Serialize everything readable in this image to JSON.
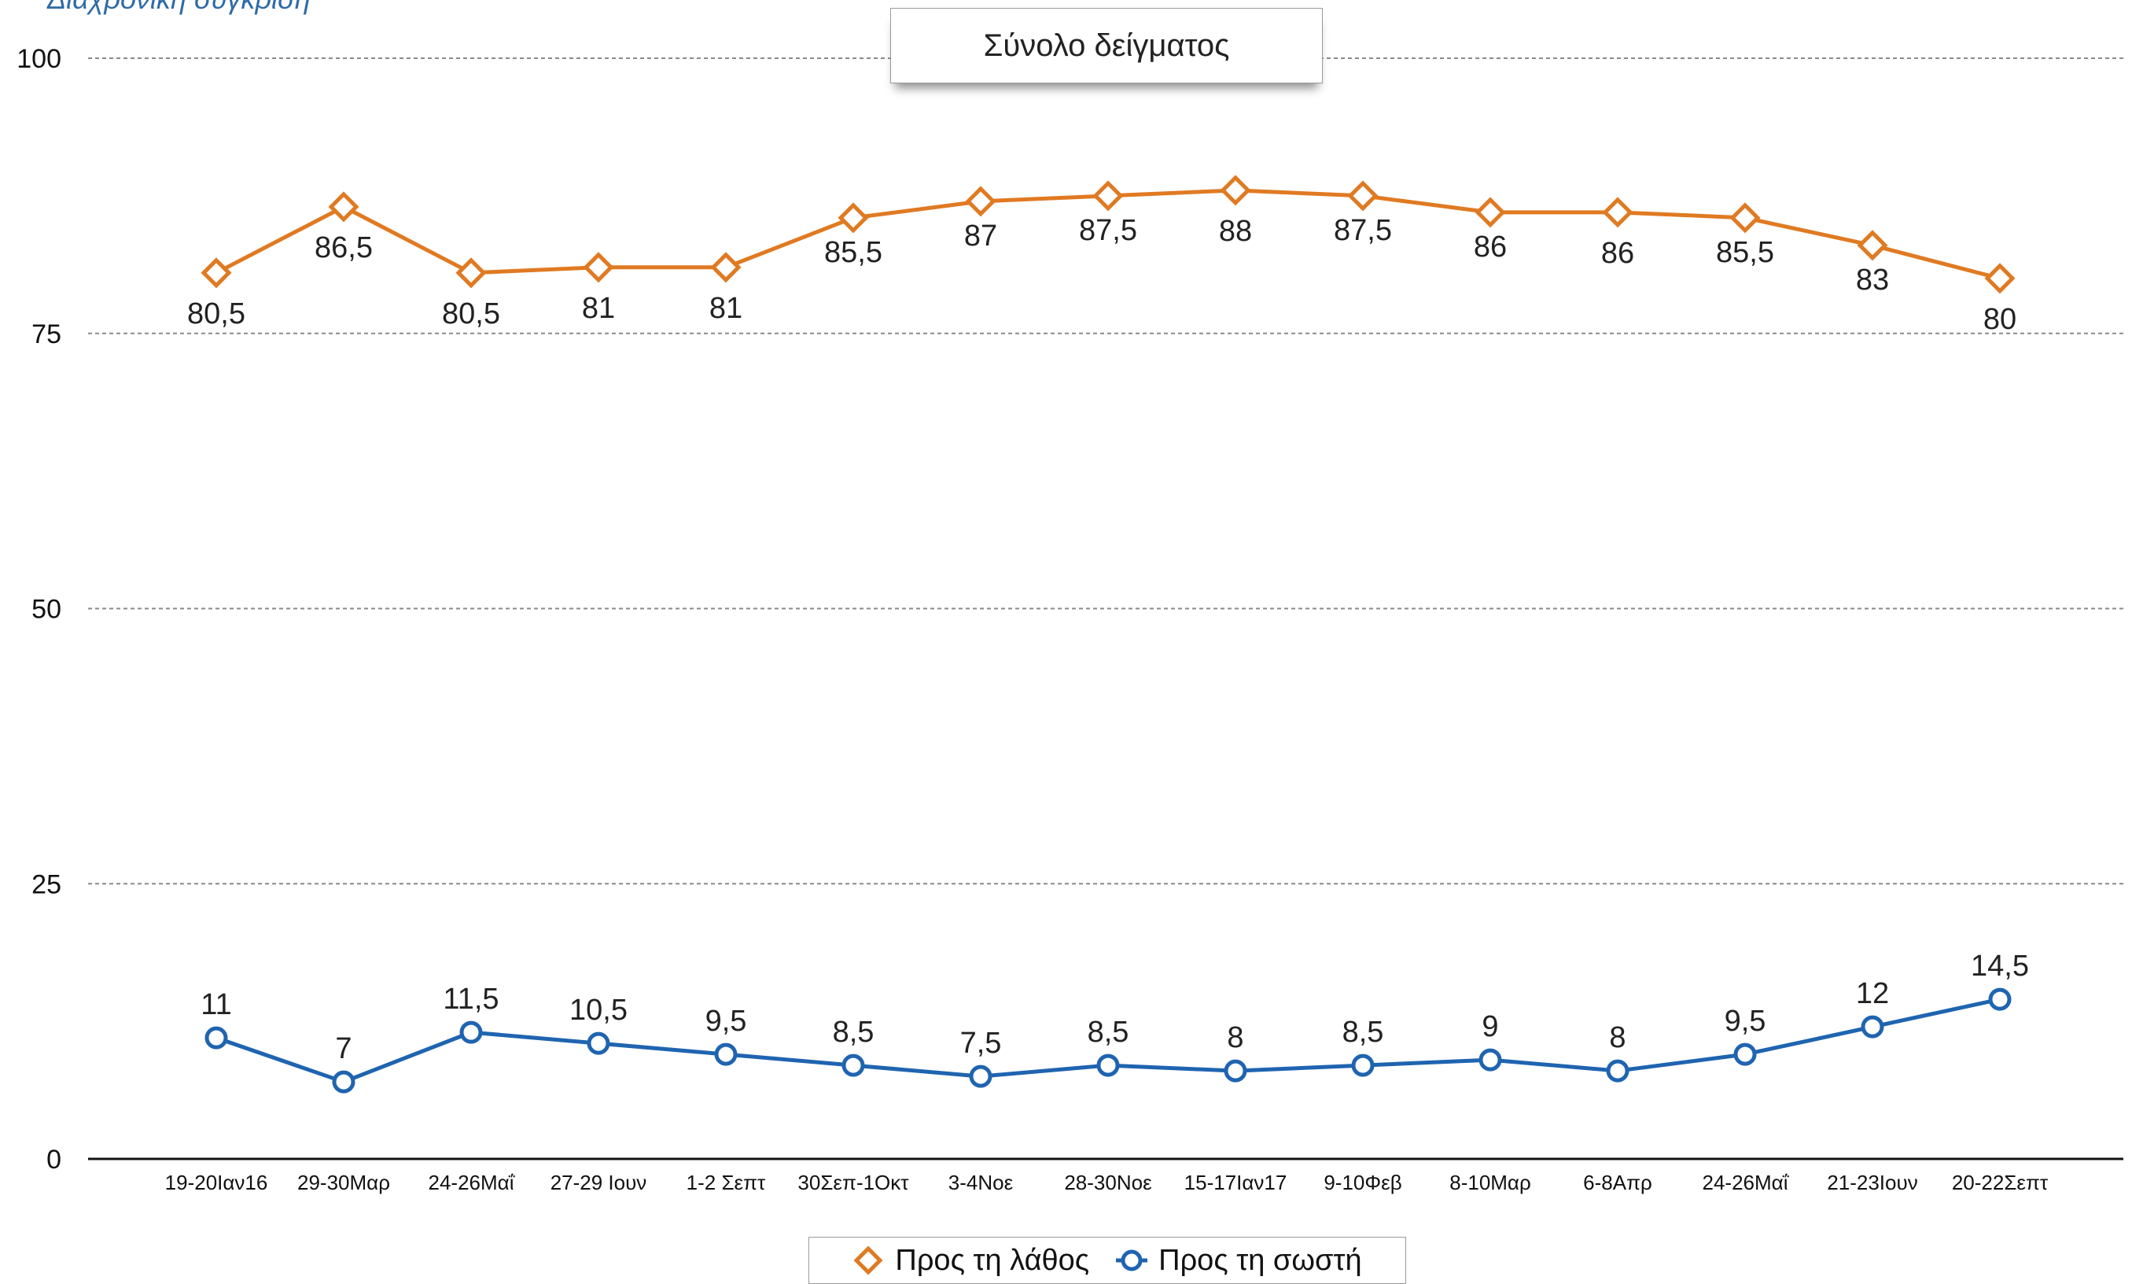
{
  "subtitle": "Διαχρονική σύγκριση",
  "chart_data": {
    "type": "line",
    "title": "Σύνολο δείγματος",
    "xlabel": "",
    "ylabel": "",
    "ylim": [
      0,
      100
    ],
    "yticks": [
      0,
      25,
      50,
      75,
      100
    ],
    "grid": true,
    "legend_position": "bottom",
    "categories": [
      "19-20Ιαν16",
      "29-30Μαρ",
      "24-26Μαΐ",
      "27-29 Ιουν",
      "1-2 Σεπτ",
      "30Σεπ-1Οκτ",
      "3-4Νοε",
      "28-30Νοε",
      "15-17Ιαν17",
      "9-10Φεβ",
      "8-10Μαρ",
      "6-8Απρ",
      "24-26Μαΐ",
      "21-23Ιουν",
      "20-22Σεπτ"
    ],
    "series": [
      {
        "name": "Προς τη λάθος",
        "color": "#e07a22",
        "marker": "diamond",
        "values": [
          80.5,
          86.5,
          80.5,
          81,
          81,
          85.5,
          87,
          87.5,
          88,
          87.5,
          86,
          86,
          85.5,
          83,
          80
        ],
        "labels": [
          "80,5",
          "86,5",
          "80,5",
          "81",
          "81",
          "85,5",
          "87",
          "87,5",
          "88",
          "87,5",
          "86",
          "86",
          "85,5",
          "83",
          "80"
        ]
      },
      {
        "name": "Προς τη σωστή",
        "color": "#1f64b0",
        "marker": "circle",
        "values": [
          11,
          7,
          11.5,
          10.5,
          9.5,
          8.5,
          7.5,
          8.5,
          8,
          8.5,
          9,
          8,
          9.5,
          12,
          14.5
        ],
        "labels": [
          "11",
          "7",
          "11,5",
          "10,5",
          "9,5",
          "8,5",
          "7,5",
          "8,5",
          "8",
          "8,5",
          "9",
          "8",
          "9,5",
          "12",
          "14,5"
        ]
      }
    ]
  }
}
